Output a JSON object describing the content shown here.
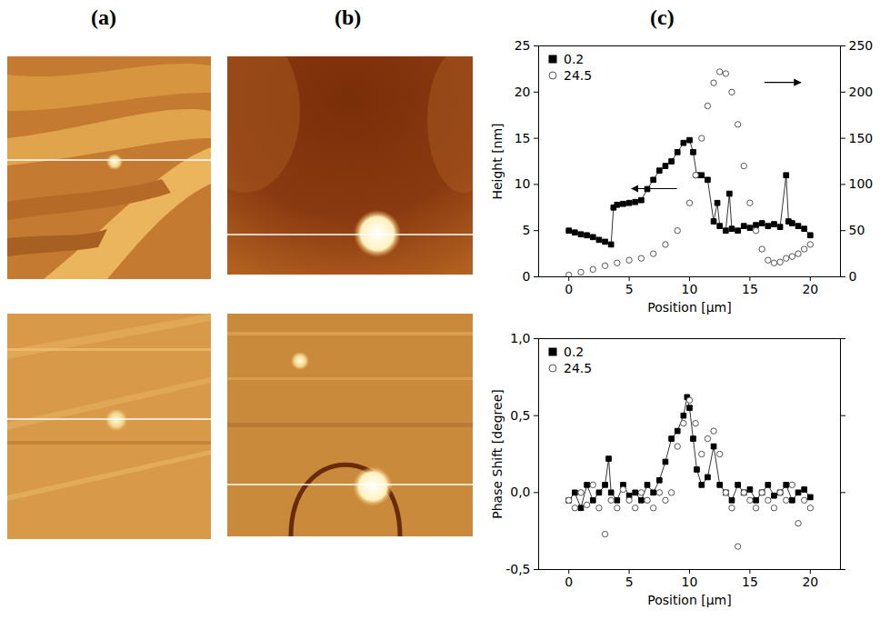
{
  "panel_labels": [
    "(a)",
    "(b)",
    "(c)"
  ],
  "chart_data": [
    {
      "type": "scatter",
      "xlabel": "Position [μm]",
      "ylabel": "Height [nm]",
      "xlim": [
        -2.5,
        22.5
      ],
      "xticks": [
        0,
        5,
        10,
        15,
        20
      ],
      "ylim": [
        0,
        25
      ],
      "yticks": [
        0,
        5,
        10,
        15,
        20,
        25
      ],
      "y2lim": [
        0,
        250
      ],
      "y2ticks": [
        0,
        50,
        100,
        150,
        200,
        250
      ],
      "legend": "top-left",
      "series": [
        {
          "name": "0.2",
          "color": "#000000",
          "marker": "square",
          "line_style": "solid",
          "x": [
            0,
            0.5,
            1,
            1.5,
            2,
            2.5,
            3,
            3.5,
            3.7,
            4,
            4.5,
            5,
            5.5,
            6,
            6.5,
            7,
            7.5,
            8,
            8.5,
            9,
            9.5,
            10,
            10.3,
            10.6,
            11,
            11.5,
            12,
            12.3,
            12.5,
            13,
            13.3,
            13.5,
            14,
            14.5,
            15,
            15.5,
            16,
            16.5,
            17,
            17.5,
            18,
            18.2,
            18.5,
            19,
            19.5,
            20
          ],
          "values": [
            5,
            4.8,
            4.6,
            4.5,
            4.3,
            4.0,
            3.8,
            3.5,
            7.5,
            7.8,
            7.9,
            8,
            8.1,
            8.3,
            9.5,
            10.5,
            11.5,
            12,
            12.5,
            13.5,
            14.5,
            14.8,
            13.5,
            11,
            11,
            10.5,
            6,
            8,
            5.5,
            5,
            9,
            5.2,
            5,
            5.5,
            5.3,
            5.6,
            5.8,
            5.5,
            5.7,
            5.4,
            11,
            6,
            5.8,
            5.5,
            5.2,
            4.5
          ]
        },
        {
          "name": "24.5",
          "color": "#555555",
          "marker": "open_circle",
          "axis": "y2",
          "x": [
            0,
            1,
            2,
            3,
            4,
            5,
            6,
            7,
            8,
            9,
            10,
            10.5,
            11,
            11.5,
            12,
            12.5,
            13,
            13.5,
            14,
            14.5,
            15,
            15.5,
            16,
            16.5,
            17,
            17.5,
            18,
            18.5,
            19,
            19.5,
            20
          ],
          "values": [
            2,
            5,
            8,
            12,
            15,
            18,
            20,
            25,
            35,
            50,
            80,
            110,
            150,
            185,
            210,
            222,
            220,
            200,
            165,
            120,
            80,
            50,
            30,
            18,
            15,
            16,
            20,
            22,
            25,
            30,
            35
          ]
        }
      ]
    },
    {
      "type": "scatter",
      "xlabel": "Position [μm]",
      "ylabel": "Phase Shift [degree]",
      "xlim": [
        -2.5,
        22.5
      ],
      "xticks": [
        0,
        5,
        10,
        15,
        20
      ],
      "ylim": [
        -0.5,
        1.0
      ],
      "yticks": [
        {
          "value": -0.5,
          "label": "-0,5"
        },
        {
          "value": 0,
          "label": "0,0"
        },
        {
          "value": 0.5,
          "label": "0,5"
        },
        {
          "value": 1.0,
          "label": "1,0"
        }
      ],
      "legend": "top-left",
      "series": [
        {
          "name": "0.2",
          "color": "#000000",
          "marker": "square",
          "line_style": "solid",
          "x": [
            0,
            0.5,
            1,
            1.5,
            2,
            2.5,
            3,
            3.3,
            3.5,
            4,
            4.5,
            5,
            5.5,
            6,
            6.5,
            7,
            7.5,
            8,
            8.5,
            9,
            9.5,
            9.8,
            10,
            10.3,
            10.6,
            11,
            11.5,
            12,
            12.5,
            13,
            13.5,
            14,
            14.5,
            15,
            15.5,
            16,
            16.5,
            17,
            17.5,
            18,
            18.5,
            19,
            19.5,
            20
          ],
          "values": [
            -0.05,
            0.0,
            -0.1,
            0.05,
            -0.05,
            0.0,
            0.05,
            0.22,
            0.0,
            -0.05,
            0.05,
            -0.02,
            0.0,
            -0.05,
            0.05,
            0.0,
            0.08,
            0.2,
            0.35,
            0.4,
            0.5,
            0.62,
            0.55,
            0.35,
            0.15,
            0.05,
            0.1,
            0.3,
            0.05,
            0.0,
            -0.05,
            0.05,
            0.0,
            0.02,
            -0.05,
            0.0,
            0.05,
            -0.02,
            0.0,
            0.05,
            -0.05,
            0.0,
            0.02,
            -0.03
          ]
        },
        {
          "name": "24.5",
          "color": "#555555",
          "marker": "open_circle",
          "x": [
            0,
            0.5,
            1,
            1.5,
            2,
            2.5,
            3,
            3.5,
            4,
            4.5,
            5,
            5.5,
            6,
            6.5,
            7,
            7.5,
            8,
            8.5,
            9,
            9.5,
            10,
            10.5,
            11,
            11.5,
            12,
            12.5,
            13,
            13.5,
            14,
            14.5,
            15,
            15.5,
            16,
            16.5,
            17,
            17.5,
            18,
            18.5,
            19,
            19.5,
            20
          ],
          "values": [
            -0.05,
            -0.1,
            0.0,
            -0.08,
            0.05,
            -0.1,
            -0.27,
            -0.05,
            -0.1,
            0.02,
            -0.05,
            -0.1,
            0.0,
            -0.05,
            -0.1,
            0.0,
            -0.05,
            0.0,
            0.3,
            0.45,
            0.6,
            0.45,
            0.25,
            0.35,
            0.4,
            0.25,
            0.0,
            -0.1,
            -0.35,
            0.0,
            -0.05,
            -0.1,
            0.0,
            -0.05,
            -0.1,
            0.0,
            -0.05,
            0.05,
            -0.2,
            -0.05,
            -0.1
          ]
        }
      ]
    }
  ]
}
